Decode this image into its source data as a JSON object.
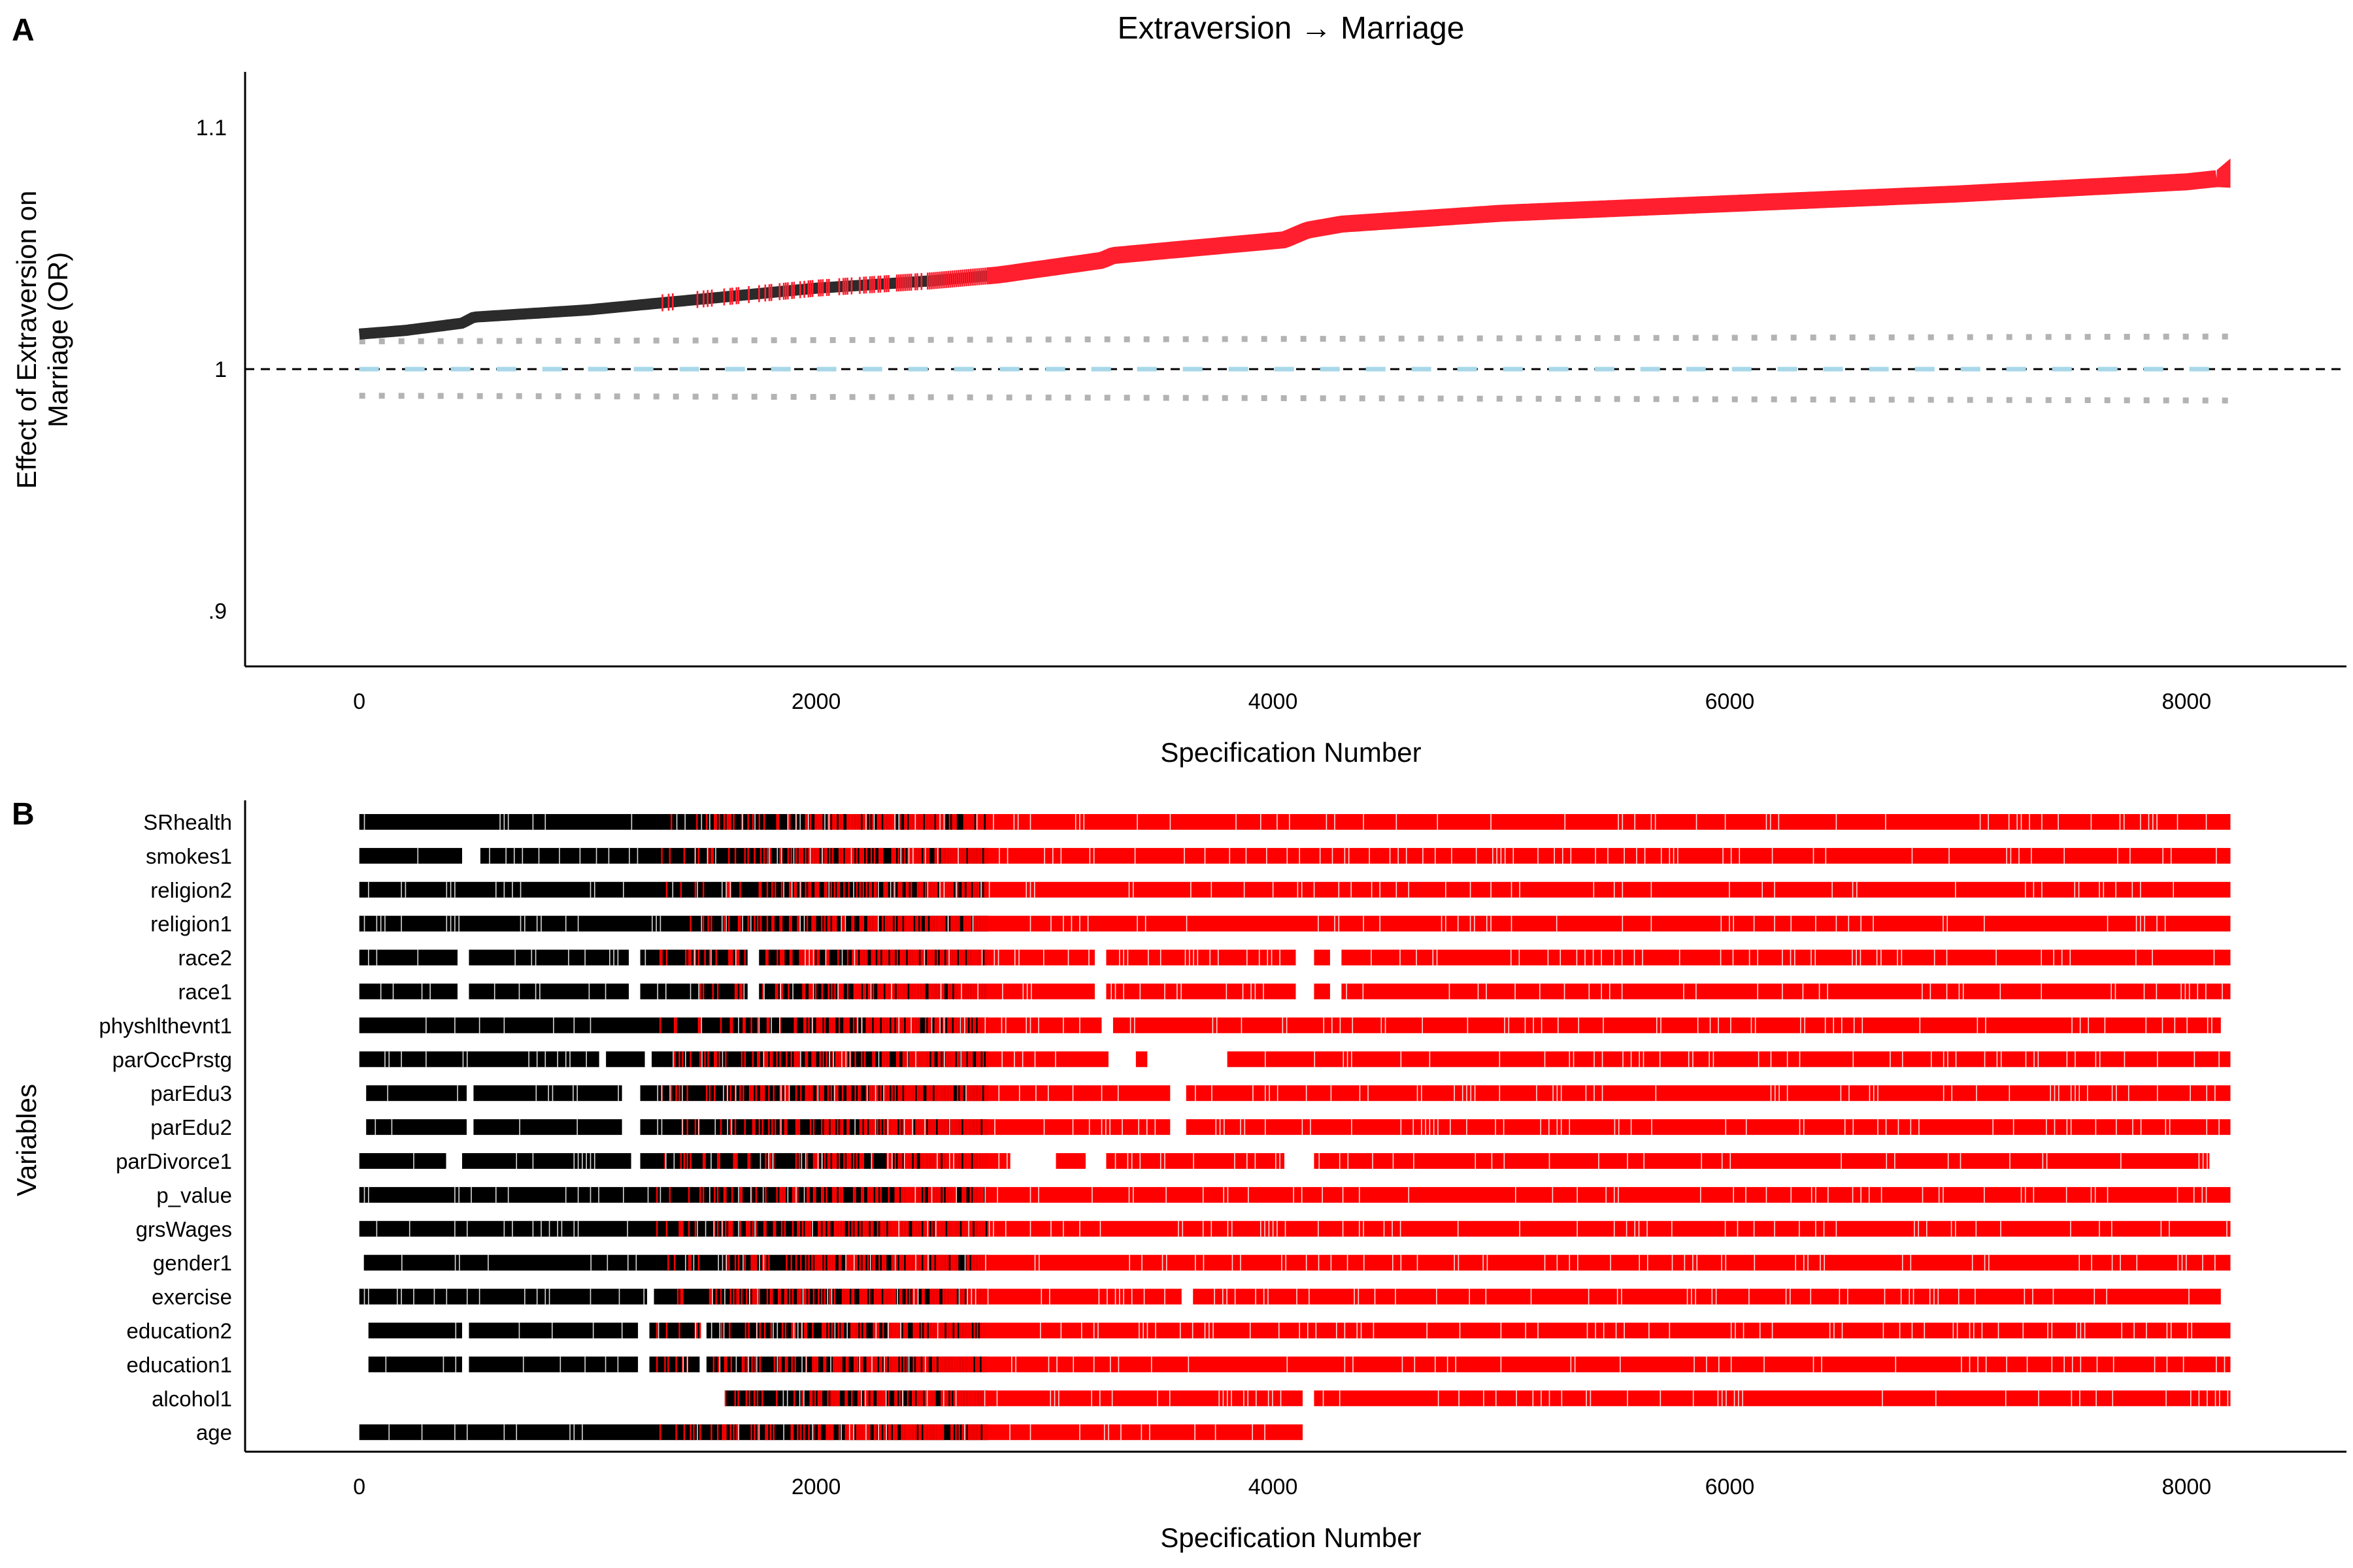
{
  "panel_a_label": "A",
  "panel_b_label": "B",
  "chart_data": [
    {
      "type": "line",
      "title": "Extraversion → Marriage",
      "xlabel": "Specification Number",
      "ylabel_line1": "Effect of Extraversion on",
      "ylabel_line2": "Marriage (OR)",
      "xlim": [
        -500,
        8700
      ],
      "ylim": [
        0.877,
        1.123
      ],
      "x_ticks": [
        0,
        2000,
        4000,
        6000,
        8000
      ],
      "x_tick_labels": [
        "0",
        "2000",
        "4000",
        "6000",
        "8000"
      ],
      "y_ticks": [
        0.9,
        1.0,
        1.1
      ],
      "y_tick_labels": [
        ".9",
        "1",
        "1.1"
      ],
      "reference_line": 1.0,
      "n_specifications": 8192,
      "series": [
        {
          "role": "estimate",
          "points": [
            [
              0,
              1.0145
            ],
            [
              200,
              1.016
            ],
            [
              450,
              1.019
            ],
            [
              500,
              1.0215
            ],
            [
              1000,
              1.0245
            ],
            [
              1500,
              1.029
            ],
            [
              2000,
              1.0335
            ],
            [
              2500,
              1.0365
            ],
            [
              2800,
              1.039
            ],
            [
              3250,
              1.045
            ],
            [
              3300,
              1.047
            ],
            [
              3700,
              1.0505
            ],
            [
              4050,
              1.0535
            ],
            [
              4150,
              1.0575
            ],
            [
              4300,
              1.06
            ],
            [
              5000,
              1.0645
            ],
            [
              6000,
              1.0685
            ],
            [
              7000,
              1.0725
            ],
            [
              8000,
              1.0775
            ],
            [
              8150,
              1.079
            ],
            [
              8192,
              1.085
            ]
          ],
          "significant_from": 1300,
          "mostly_significant_from": 2750,
          "color_significant": "#ff1f2e",
          "color_nonsignificant": "#2b2b2b"
        },
        {
          "role": "null-upper",
          "points": [
            [
              0,
              1.0115
            ],
            [
              4000,
              1.0125
            ],
            [
              8192,
              1.0135
            ]
          ],
          "color": "#b3b3b3"
        },
        {
          "role": "null-median",
          "points": [
            [
              0,
              1.0
            ],
            [
              8192,
              1.0
            ]
          ],
          "color": "#a8d8e8"
        },
        {
          "role": "null-lower",
          "points": [
            [
              0,
              0.989
            ],
            [
              4000,
              0.988
            ],
            [
              8192,
              0.987
            ]
          ],
          "color": "#b3b3b3"
        }
      ]
    },
    {
      "type": "heatmap",
      "xlabel": "Specification Number",
      "ylabel": "Variables",
      "xlim": [
        -500,
        8700
      ],
      "x_ticks": [
        0,
        2000,
        4000,
        6000,
        8000
      ],
      "x_tick_labels": [
        "0",
        "2000",
        "4000",
        "6000",
        "8000"
      ],
      "variables": [
        "SRhealth",
        "smokes1",
        "religion2",
        "religion1",
        "race2",
        "race1",
        "physhlthevnt1",
        "parOccPrstg",
        "parEdu3",
        "parEdu2",
        "parDivorce1",
        "p_value",
        "grsWages",
        "gender1",
        "exercise",
        "education2",
        "education1",
        "alcohol1",
        "age"
      ],
      "color_significant": "#ff0000",
      "color_nonsignificant": "#000000",
      "transition_start": 1300,
      "transition_end": 2750,
      "present_segments": {
        "SRhealth": [
          [
            0,
            8192
          ]
        ],
        "smokes1": [
          [
            0,
            450
          ],
          [
            530,
            8192
          ]
        ],
        "religion2": [
          [
            0,
            8192
          ]
        ],
        "religion1": [
          [
            0,
            8192
          ]
        ],
        "race2": [
          [
            0,
            430
          ],
          [
            480,
            1180
          ],
          [
            1230,
            1700
          ],
          [
            1750,
            3220
          ],
          [
            3270,
            4100
          ],
          [
            4180,
            4250
          ],
          [
            4300,
            8192
          ]
        ],
        "race1": [
          [
            0,
            430
          ],
          [
            480,
            1180
          ],
          [
            1230,
            1700
          ],
          [
            1750,
            3220
          ],
          [
            3270,
            4100
          ],
          [
            4180,
            4250
          ],
          [
            4300,
            8192
          ]
        ],
        "physhlthevnt1": [
          [
            0,
            3250
          ],
          [
            3300,
            8150
          ]
        ],
        "parOccPrstg": [
          [
            0,
            1050
          ],
          [
            1080,
            1250
          ],
          [
            1280,
            3280
          ],
          [
            3400,
            3450
          ],
          [
            3800,
            8192
          ]
        ],
        "parEdu3": [
          [
            30,
            470
          ],
          [
            500,
            1150
          ],
          [
            1230,
            3550
          ],
          [
            3620,
            8192
          ]
        ],
        "parEdu2": [
          [
            30,
            470
          ],
          [
            500,
            1150
          ],
          [
            1230,
            3550
          ],
          [
            3620,
            8192
          ]
        ],
        "parDivorce1": [
          [
            0,
            380
          ],
          [
            450,
            1190
          ],
          [
            1230,
            2850
          ],
          [
            3050,
            3180
          ],
          [
            3270,
            4050
          ],
          [
            4180,
            8100
          ]
        ],
        "p_value": [
          [
            0,
            8192
          ]
        ],
        "grsWages": [
          [
            0,
            8192
          ]
        ],
        "gender1": [
          [
            20,
            8192
          ]
        ],
        "exercise": [
          [
            0,
            1260
          ],
          [
            1290,
            3600
          ],
          [
            3650,
            8150
          ]
        ],
        "education2": [
          [
            40,
            450
          ],
          [
            480,
            1220
          ],
          [
            1270,
            1490
          ],
          [
            1520,
            8192
          ]
        ],
        "education1": [
          [
            40,
            450
          ],
          [
            480,
            1220
          ],
          [
            1270,
            1490
          ],
          [
            1520,
            8192
          ]
        ],
        "alcohol1": [
          [
            1600,
            4130
          ],
          [
            4180,
            8192
          ]
        ],
        "age": [
          [
            0,
            4130
          ]
        ]
      }
    }
  ]
}
